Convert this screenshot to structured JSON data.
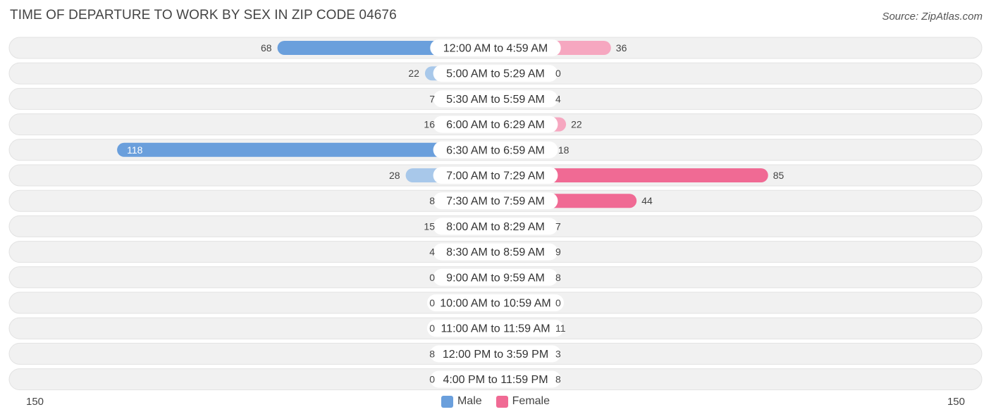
{
  "header": {
    "title": "TIME OF DEPARTURE TO WORK BY SEX IN ZIP CODE 04676",
    "source": "Source: ZipAtlas.com"
  },
  "colors": {
    "male_strong": "#6a9fdc",
    "male_light": "#a8c8ea",
    "female_strong": "#f06a94",
    "female_light": "#f6a7c0",
    "row_bg": "#f1f1f1"
  },
  "chart_data": {
    "type": "bar",
    "orientation": "horizontal-diverging",
    "title": "TIME OF DEPARTURE TO WORK BY SEX IN ZIP CODE 04676",
    "categories": [
      "12:00 AM to 4:59 AM",
      "5:00 AM to 5:29 AM",
      "5:30 AM to 5:59 AM",
      "6:00 AM to 6:29 AM",
      "6:30 AM to 6:59 AM",
      "7:00 AM to 7:29 AM",
      "7:30 AM to 7:59 AM",
      "8:00 AM to 8:29 AM",
      "8:30 AM to 8:59 AM",
      "9:00 AM to 9:59 AM",
      "10:00 AM to 10:59 AM",
      "11:00 AM to 11:59 AM",
      "12:00 PM to 3:59 PM",
      "4:00 PM to 11:59 PM"
    ],
    "series": [
      {
        "name": "Male",
        "values": [
          68,
          22,
          7,
          16,
          118,
          28,
          8,
          15,
          4,
          0,
          0,
          0,
          8,
          0
        ]
      },
      {
        "name": "Female",
        "values": [
          36,
          0,
          4,
          22,
          18,
          85,
          44,
          7,
          9,
          8,
          0,
          11,
          3,
          8
        ]
      }
    ],
    "xlim": [
      -150,
      150
    ],
    "axis_ticks": {
      "left": "150",
      "right": "150"
    },
    "legend": {
      "position": "bottom-center",
      "entries": [
        "Male",
        "Female"
      ]
    }
  }
}
